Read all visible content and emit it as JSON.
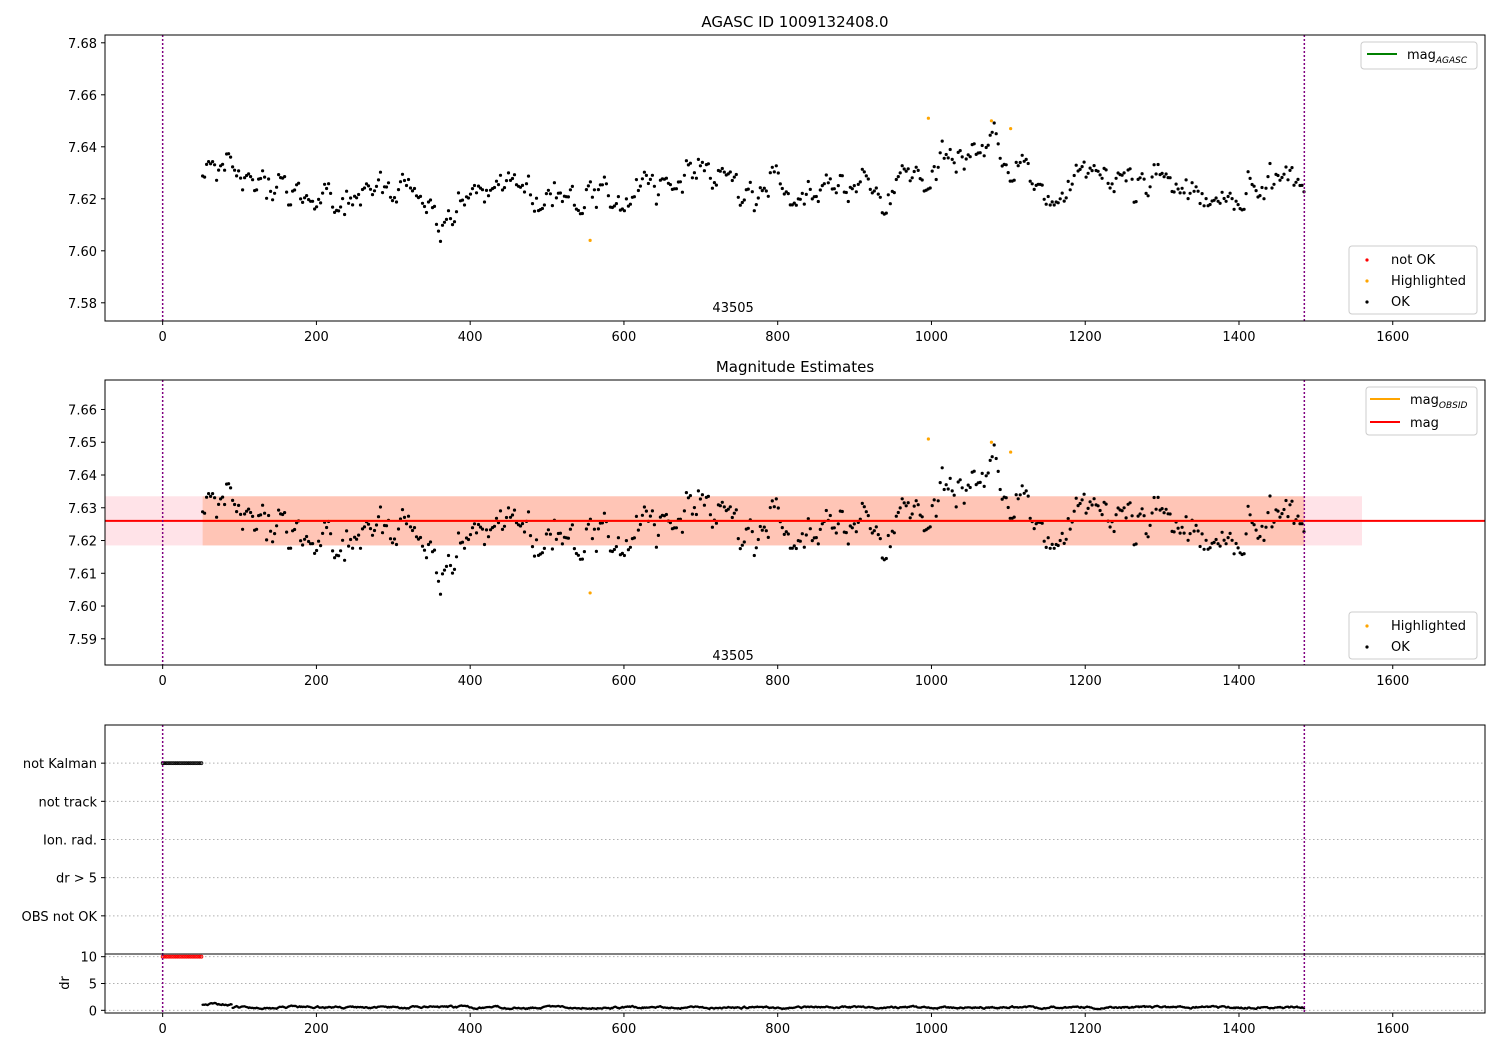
{
  "chart_data": [
    {
      "id": "top",
      "type": "scatter",
      "title": "AGASC ID 1009132408.0",
      "xlim": [
        -75,
        1720
      ],
      "ylim": [
        7.573,
        7.683
      ],
      "xticks": [
        0,
        200,
        400,
        600,
        800,
        1000,
        1200,
        1400,
        1600
      ],
      "yticks": [
        7.58,
        7.6,
        7.62,
        7.64,
        7.66,
        7.68
      ],
      "ytick_decimals": 2,
      "annotation": {
        "text": "43505",
        "x": 742,
        "y": 7.5765
      },
      "vlines": [
        0,
        1485
      ],
      "series_points": {
        "start": 52,
        "end": 1485,
        "step": 2.6,
        "base": 7.626,
        "seed": 7,
        "trend": [
          [
            52,
            7.629
          ],
          [
            130,
            7.626
          ],
          [
            200,
            7.622
          ],
          [
            300,
            7.622
          ],
          [
            360,
            7.615
          ],
          [
            420,
            7.621
          ],
          [
            470,
            7.628
          ],
          [
            520,
            7.622
          ],
          [
            560,
            7.616
          ],
          [
            600,
            7.624
          ],
          [
            650,
            7.626
          ],
          [
            700,
            7.632
          ],
          [
            760,
            7.624
          ],
          [
            820,
            7.62
          ],
          [
            880,
            7.627
          ],
          [
            950,
            7.625
          ],
          [
            1000,
            7.63
          ],
          [
            1040,
            7.634
          ],
          [
            1080,
            7.639
          ],
          [
            1110,
            7.631
          ],
          [
            1160,
            7.62
          ],
          [
            1200,
            7.622
          ],
          [
            1250,
            7.627
          ],
          [
            1300,
            7.625
          ],
          [
            1350,
            7.622
          ],
          [
            1400,
            7.621
          ],
          [
            1440,
            7.63
          ],
          [
            1485,
            7.627
          ]
        ]
      },
      "highlighted_points": [
        {
          "x": 556,
          "y": 7.604
        },
        {
          "x": 996,
          "y": 7.651
        },
        {
          "x": 1078,
          "y": 7.65
        },
        {
          "x": 1103,
          "y": 7.647
        }
      ],
      "legend_top": {
        "position": "top-right",
        "entries": [
          {
            "label": "mag",
            "sub": "AGASC",
            "color": "#008000"
          }
        ]
      },
      "legend_bottom": {
        "position": "bottom-right",
        "entries": [
          {
            "label": "not OK",
            "color": "#ff0000"
          },
          {
            "label": "Highlighted",
            "color": "#ffa500"
          },
          {
            "label": "OK",
            "color": "#000000"
          }
        ]
      }
    },
    {
      "id": "mid",
      "type": "scatter",
      "title": "Magnitude Estimates",
      "xlim": [
        -75,
        1720
      ],
      "ylim": [
        7.582,
        7.669
      ],
      "xticks": [
        0,
        200,
        400,
        600,
        800,
        1000,
        1200,
        1400,
        1600
      ],
      "yticks": [
        7.59,
        7.6,
        7.61,
        7.62,
        7.63,
        7.64,
        7.65,
        7.66
      ],
      "ytick_decimals": 2,
      "annotation": {
        "text": "43505",
        "x": 742,
        "y": 7.5835
      },
      "vlines": [
        0,
        1485
      ],
      "mag_line": {
        "value": 7.626,
        "color": "#ff0000"
      },
      "obsid_line": {
        "value": 7.626,
        "color": "#ffa500",
        "x": [
          52,
          1485
        ]
      },
      "band_obsid": {
        "x": [
          -75,
          1560
        ],
        "y": [
          7.6185,
          7.6335
        ],
        "color": "#ffa07a"
      },
      "band_agasc": {
        "x": [
          -75,
          1560
        ],
        "y": [
          7.6185,
          7.6335
        ],
        "color": "#ffc0cb"
      },
      "highlighted_points": [
        {
          "x": 556,
          "y": 7.604
        },
        {
          "x": 996,
          "y": 7.651
        },
        {
          "x": 1078,
          "y": 7.65
        },
        {
          "x": 1103,
          "y": 7.647
        }
      ],
      "legend_top": {
        "position": "top-right",
        "entries": [
          {
            "label": "mag",
            "sub": "OBSID",
            "color": "#ffa500"
          },
          {
            "label": "mag",
            "color": "#ff0000"
          }
        ]
      },
      "legend_bottom": {
        "position": "bottom-right",
        "entries": [
          {
            "label": "Highlighted",
            "color": "#ffa500"
          },
          {
            "label": "OK",
            "color": "#000000"
          }
        ]
      }
    },
    {
      "id": "flags",
      "type": "scatter",
      "categories": [
        "not Kalman",
        "not track",
        "Ion. rad.",
        "dr > 5",
        "OBS not OK"
      ],
      "xlim": [
        -75,
        1720
      ],
      "vlines": [
        0,
        1485
      ],
      "flag_points": {
        "category": "not Kalman",
        "start": 0,
        "end": 52,
        "step": 2.4
      }
    },
    {
      "id": "dr",
      "type": "scatter",
      "ylabel": "dr",
      "xlim": [
        -75,
        1720
      ],
      "ylim": [
        -0.5,
        10.5
      ],
      "xticks": [
        0,
        200,
        400,
        600,
        800,
        1000,
        1200,
        1400,
        1600
      ],
      "yticks": [
        0,
        5,
        10
      ],
      "vlines": [
        0,
        1485
      ],
      "red_points": {
        "y": 10,
        "start": 0,
        "end": 52,
        "step": 2.4,
        "color": "#ff0000"
      },
      "black_points": {
        "start": 52,
        "end": 1485,
        "step": 1.3,
        "base": 0.55,
        "seed": 19
      }
    }
  ]
}
